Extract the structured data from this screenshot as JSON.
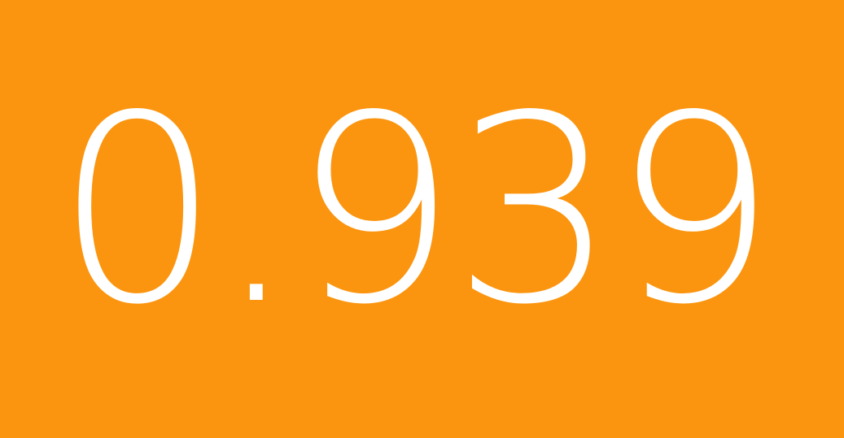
{
  "tile": {
    "value": "0.939",
    "background_color": "#FB9510",
    "text_color": "#FFFFFF"
  }
}
